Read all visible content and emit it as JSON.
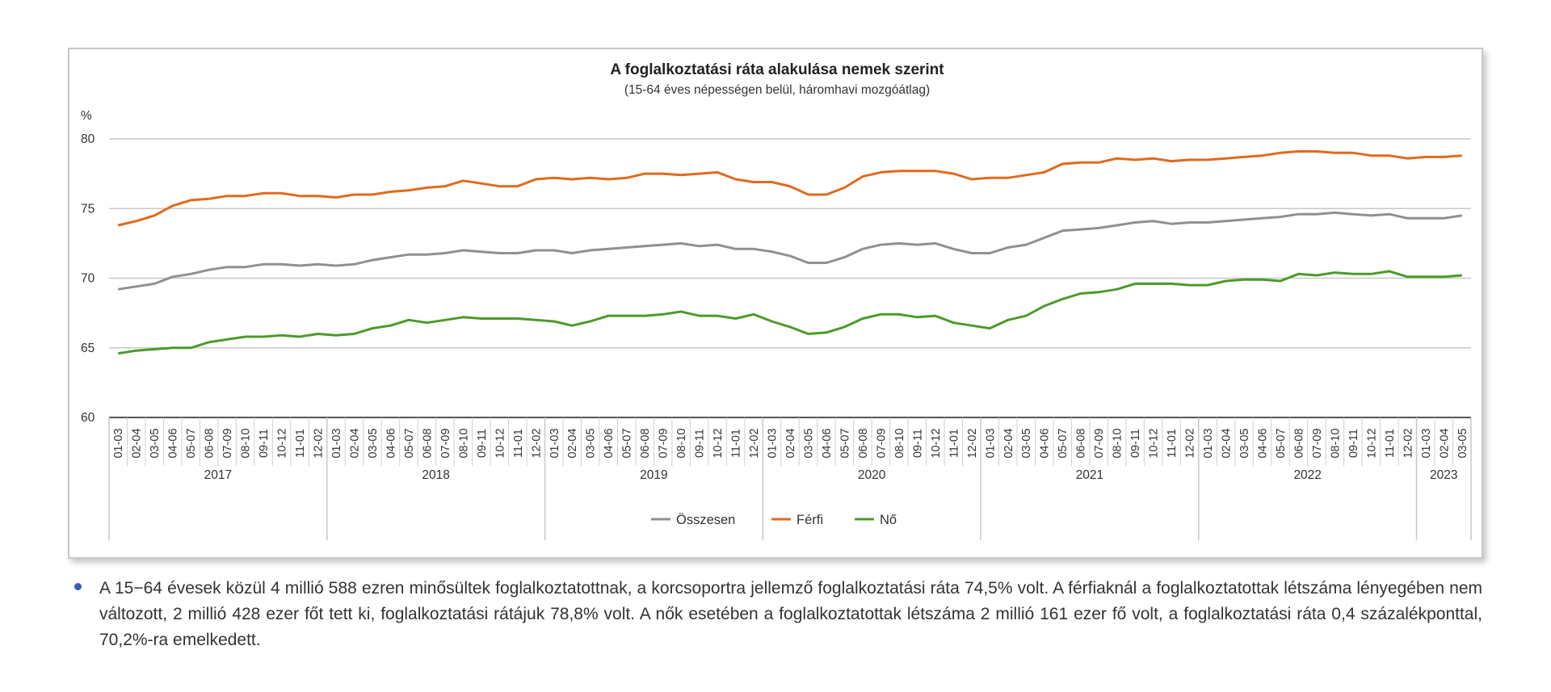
{
  "chart_data": {
    "type": "line",
    "title": "A foglalkoztatási ráta alakulása nemek szerint",
    "subtitle": "(15-64 éves népességen belül, háromhavi mozgóátlag)",
    "ylabel": "%",
    "xlabel": "",
    "ylim": [
      60,
      80
    ],
    "yticks": [
      60,
      65,
      70,
      75,
      80
    ],
    "grid": true,
    "legend_position": "bottom-center",
    "x_groups": [
      {
        "label": "2017",
        "count": 12
      },
      {
        "label": "2018",
        "count": 12
      },
      {
        "label": "2019",
        "count": 12
      },
      {
        "label": "2020",
        "count": 12
      },
      {
        "label": "2021",
        "count": 12
      },
      {
        "label": "2022",
        "count": 12
      },
      {
        "label": "2023",
        "count": 3
      }
    ],
    "x": [
      "01-03",
      "02-04",
      "03-05",
      "04-06",
      "05-07",
      "06-08",
      "07-09",
      "08-10",
      "09-11",
      "10-12",
      "11-01",
      "12-02",
      "01-03",
      "02-04",
      "03-05",
      "04-06",
      "05-07",
      "06-08",
      "07-09",
      "08-10",
      "09-11",
      "10-12",
      "11-01",
      "12-02",
      "01-03",
      "02-04",
      "03-05",
      "04-06",
      "05-07",
      "06-08",
      "07-09",
      "08-10",
      "09-11",
      "10-12",
      "11-01",
      "12-02",
      "01-03",
      "02-04",
      "03-05",
      "04-06",
      "05-07",
      "06-08",
      "07-09",
      "08-10",
      "09-11",
      "10-12",
      "11-01",
      "12-02",
      "01-03",
      "02-04",
      "03-05",
      "04-06",
      "05-07",
      "06-08",
      "07-09",
      "08-10",
      "09-11",
      "10-12",
      "11-01",
      "12-02",
      "01-03",
      "02-04",
      "03-05",
      "04-06",
      "05-07",
      "06-08",
      "07-09",
      "08-10",
      "09-11",
      "10-12",
      "11-01",
      "12-02",
      "01-03",
      "02-04",
      "03-05"
    ],
    "series": [
      {
        "name": "Összesen",
        "color": "#909090",
        "values": [
          69.2,
          69.4,
          69.6,
          70.1,
          70.3,
          70.6,
          70.8,
          70.8,
          71.0,
          71.0,
          70.9,
          71.0,
          70.9,
          71.0,
          71.3,
          71.5,
          71.7,
          71.7,
          71.8,
          72.0,
          71.9,
          71.8,
          71.8,
          72.0,
          72.0,
          71.8,
          72.0,
          72.1,
          72.2,
          72.3,
          72.4,
          72.5,
          72.3,
          72.4,
          72.1,
          72.1,
          71.9,
          71.6,
          71.1,
          71.1,
          71.5,
          72.1,
          72.4,
          72.5,
          72.4,
          72.5,
          72.1,
          71.8,
          71.8,
          72.2,
          72.4,
          72.9,
          73.4,
          73.5,
          73.6,
          73.8,
          74.0,
          74.1,
          73.9,
          74.0,
          74.0,
          74.1,
          74.2,
          74.3,
          74.4,
          74.6,
          74.6,
          74.7,
          74.6,
          74.5,
          74.6,
          74.3,
          74.3,
          74.3,
          74.5
        ]
      },
      {
        "name": "Férfi",
        "color": "#e06a1c",
        "values": [
          73.8,
          74.1,
          74.5,
          75.2,
          75.6,
          75.7,
          75.9,
          75.9,
          76.1,
          76.1,
          75.9,
          75.9,
          75.8,
          76.0,
          76.0,
          76.2,
          76.3,
          76.5,
          76.6,
          77.0,
          76.8,
          76.6,
          76.6,
          77.1,
          77.2,
          77.1,
          77.2,
          77.1,
          77.2,
          77.5,
          77.5,
          77.4,
          77.5,
          77.6,
          77.1,
          76.9,
          76.9,
          76.6,
          76.0,
          76.0,
          76.5,
          77.3,
          77.6,
          77.7,
          77.7,
          77.7,
          77.5,
          77.1,
          77.2,
          77.2,
          77.4,
          77.6,
          78.2,
          78.3,
          78.3,
          78.6,
          78.5,
          78.6,
          78.4,
          78.5,
          78.5,
          78.6,
          78.7,
          78.8,
          79.0,
          79.1,
          79.1,
          79.0,
          79.0,
          78.8,
          78.8,
          78.6,
          78.7,
          78.7,
          78.8
        ]
      },
      {
        "name": "Nő",
        "color": "#4c9a2a",
        "values": [
          64.6,
          64.8,
          64.9,
          65.0,
          65.0,
          65.4,
          65.6,
          65.8,
          65.8,
          65.9,
          65.8,
          66.0,
          65.9,
          66.0,
          66.4,
          66.6,
          67.0,
          66.8,
          67.0,
          67.2,
          67.1,
          67.1,
          67.1,
          67.0,
          66.9,
          66.6,
          66.9,
          67.3,
          67.3,
          67.3,
          67.4,
          67.6,
          67.3,
          67.3,
          67.1,
          67.4,
          66.9,
          66.5,
          66.0,
          66.1,
          66.5,
          67.1,
          67.4,
          67.4,
          67.2,
          67.3,
          66.8,
          66.6,
          66.4,
          67.0,
          67.3,
          68.0,
          68.5,
          68.9,
          69.0,
          69.2,
          69.6,
          69.6,
          69.6,
          69.5,
          69.5,
          69.8,
          69.9,
          69.9,
          69.8,
          70.3,
          70.2,
          70.4,
          70.3,
          70.3,
          70.5,
          70.1,
          70.1,
          70.1,
          70.2
        ]
      }
    ]
  },
  "text": {
    "paragraph": "A 15−64 évesek közül 4 millió 588 ezren minősültek foglalkoztatottnak, a korcsoportra jellemző foglalkoztatási ráta 74,5% volt. A férfiaknál a foglalkoztatottak létszáma lényegében nem változott, 2 millió 428 ezer főt tett ki, foglalkoztatási rátájuk 78,8% volt. A nők esetében a foglalkoztatottak létszáma 2 millió 161 ezer fő volt, a foglalkoztatási ráta 0,4 százalékponttal, 70,2%-ra emelkedett."
  },
  "colors": {
    "bullet": "#3b5cb8",
    "gridline": "#c8c8c8",
    "axis": "#555555"
  }
}
